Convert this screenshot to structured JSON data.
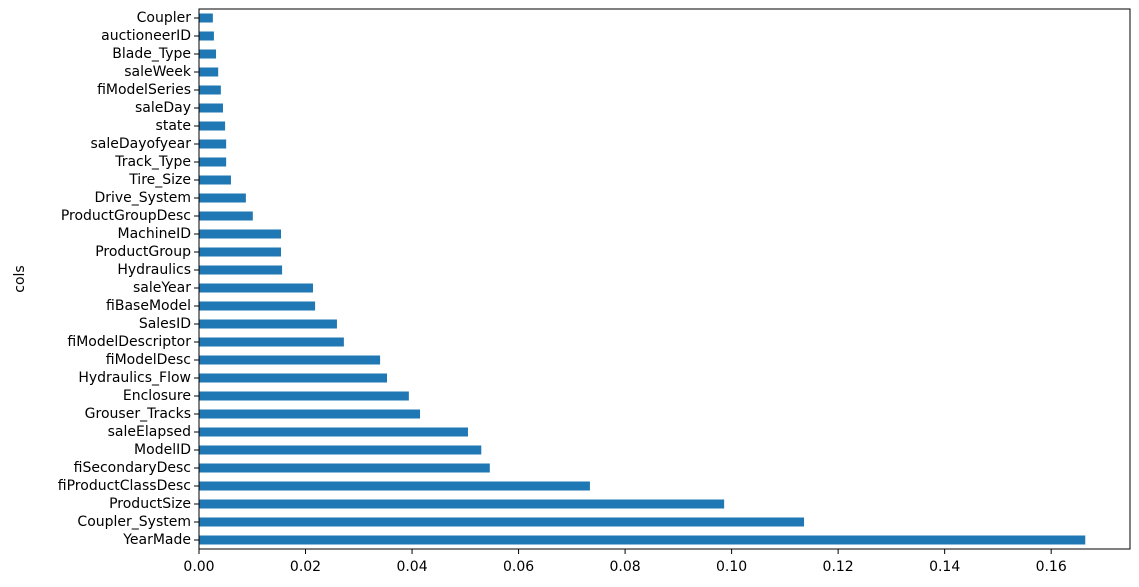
{
  "chart_data": {
    "type": "barh",
    "ylabel": "cols",
    "categories": [
      "YearMade",
      "Coupler_System",
      "ProductSize",
      "fiProductClassDesc",
      "fiSecondaryDesc",
      "ModelID",
      "saleElapsed",
      "Grouser_Tracks",
      "Enclosure",
      "Hydraulics_Flow",
      "fiModelDesc",
      "fiModelDescriptor",
      "SalesID",
      "fiBaseModel",
      "saleYear",
      "Hydraulics",
      "ProductGroup",
      "MachineID",
      "ProductGroupDesc",
      "Drive_System",
      "Tire_Size",
      "Track_Type",
      "saleDayofyear",
      "state",
      "saleDay",
      "fiModelSeries",
      "saleWeek",
      "Blade_Type",
      "auctioneerID",
      "Coupler"
    ],
    "values": [
      0.1664,
      0.1136,
      0.0986,
      0.0734,
      0.0546,
      0.053,
      0.0505,
      0.0415,
      0.0394,
      0.0353,
      0.034,
      0.0272,
      0.0259,
      0.0218,
      0.0214,
      0.0156,
      0.0154,
      0.0154,
      0.0101,
      0.0088,
      0.006,
      0.0051,
      0.0051,
      0.0049,
      0.0045,
      0.0041,
      0.0036,
      0.0032,
      0.0028,
      0.0026
    ],
    "color": "#1f77b4",
    "xlim": [
      0,
      0.1748
    ],
    "xticks": [
      {
        "value": 0,
        "label": "0.00"
      },
      {
        "value": 0.02,
        "label": "0.02"
      },
      {
        "value": 0.04,
        "label": "0.04"
      },
      {
        "value": 0.06,
        "label": "0.06"
      },
      {
        "value": 0.08,
        "label": "0.08"
      },
      {
        "value": 0.1,
        "label": "0.10"
      },
      {
        "value": 0.12,
        "label": "0.12"
      },
      {
        "value": 0.14,
        "label": "0.14"
      },
      {
        "value": 0.16,
        "label": "0.16"
      }
    ],
    "grid": false
  }
}
